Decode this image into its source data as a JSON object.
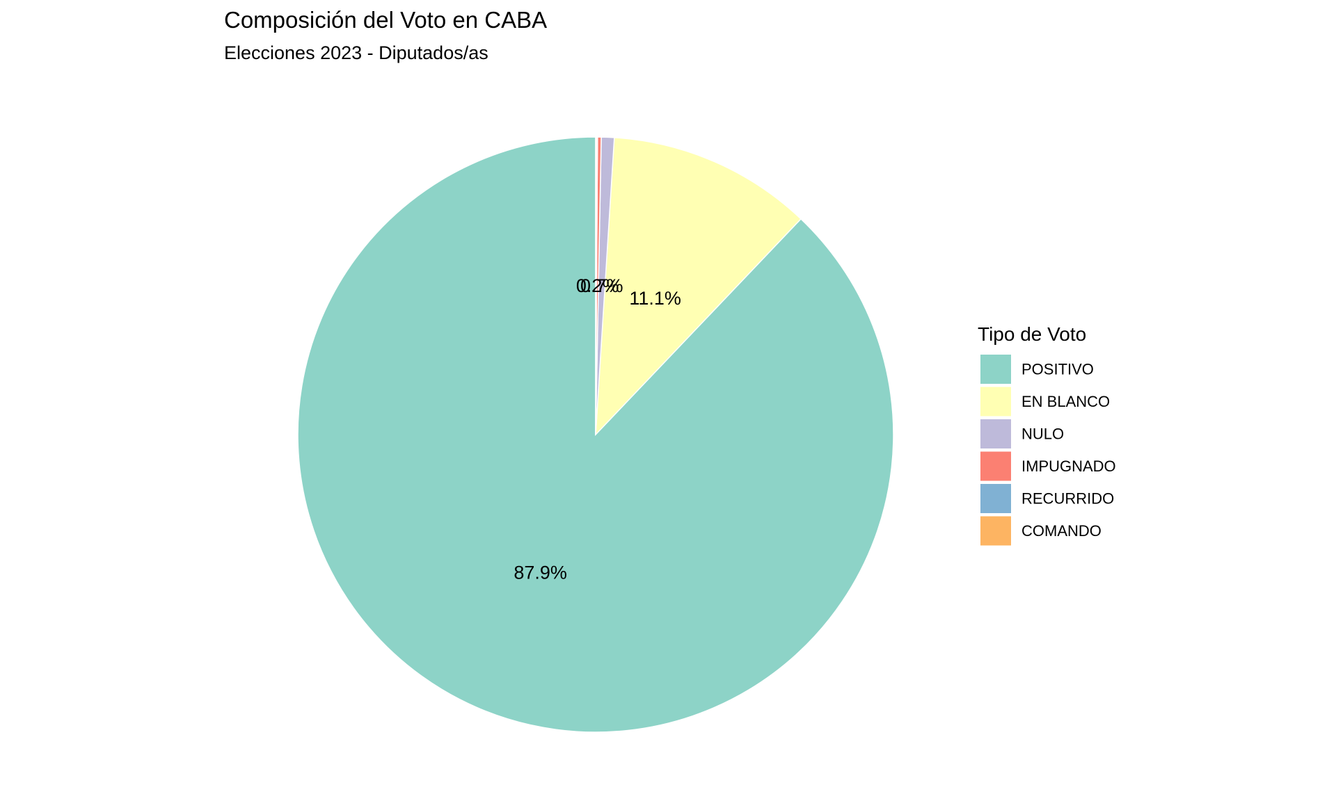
{
  "chart_data": {
    "type": "pie",
    "title": "Composición del Voto en CABA",
    "subtitle": "Elecciones 2023 - Diputados/as",
    "legend": {
      "title": "Tipo de Voto",
      "placement": "right"
    },
    "categories": [
      "POSITIVO",
      "EN BLANCO",
      "NULO",
      "IMPUGNADO",
      "RECURRIDO",
      "COMANDO"
    ],
    "values": [
      87.9,
      11.1,
      0.7,
      0.2,
      0.05,
      0.05
    ],
    "labels": [
      "87.9%",
      "11.1%",
      "0.7%",
      "0.2%",
      "",
      ""
    ],
    "colors": [
      "#8DD3C7",
      "#FFFFB3",
      "#BEBADA",
      "#FB8072",
      "#80B1D3",
      "#FDB462"
    ],
    "start": "top",
    "direction": "counterclockwise",
    "grid": false
  }
}
